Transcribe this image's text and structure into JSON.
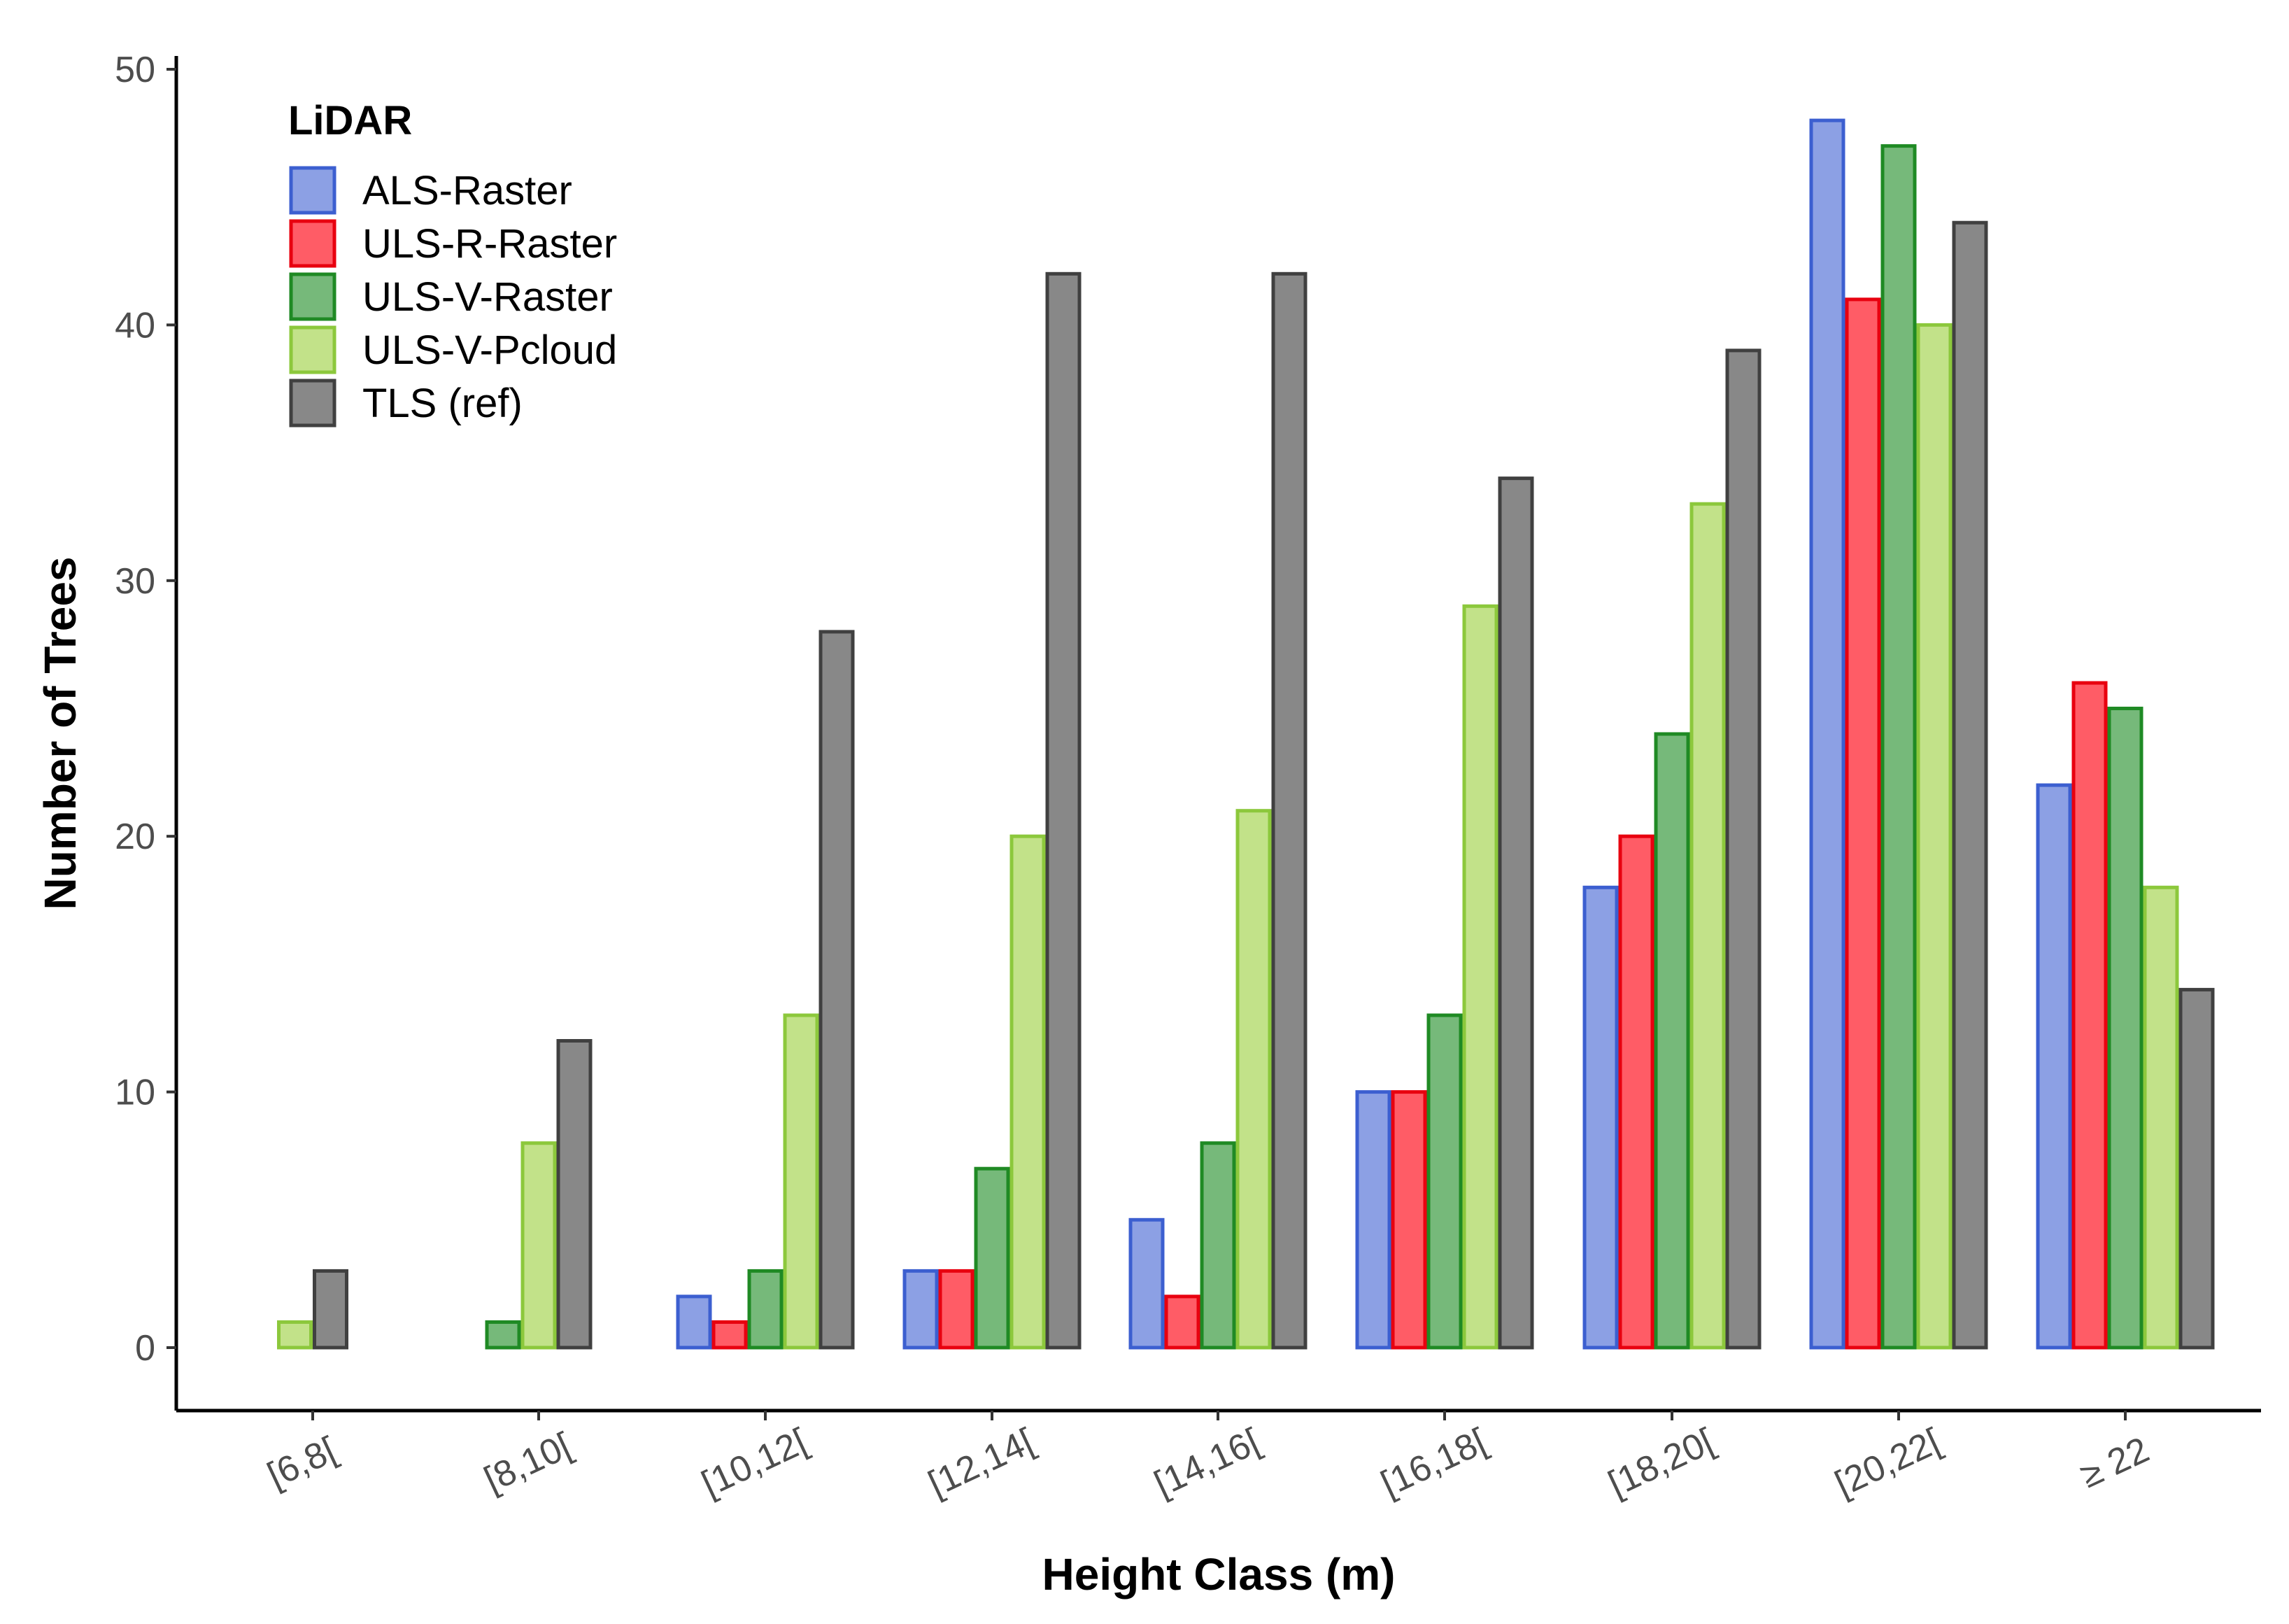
{
  "chart_data": {
    "type": "bar",
    "title": "",
    "xlabel": "Height Class (m)",
    "ylabel": "Number of Trees",
    "ylim": [
      0,
      50
    ],
    "yticks": [
      0,
      10,
      20,
      30,
      40,
      50
    ],
    "ytick_labels": [
      "0",
      "10",
      "20",
      "30",
      "40",
      "50"
    ],
    "grid": false,
    "legend": {
      "title": "LiDAR",
      "position": "top-left"
    },
    "categories": [
      "[6,8[",
      "[8,10[",
      "[10,12[",
      "[12,14[",
      "[14,16[",
      "[16,18[",
      "[18,20[",
      "[20,22[",
      "≥ 22"
    ],
    "series": [
      {
        "name": "ALS-Raster",
        "fill": "#8ca0e4",
        "stroke": "#3c5fd0",
        "values": [
          0,
          0,
          2,
          3,
          5,
          10,
          18,
          48,
          22
        ]
      },
      {
        "name": "ULS-R-Raster",
        "fill": "#ff5c66",
        "stroke": "#e8000f",
        "values": [
          0,
          0,
          1,
          3,
          2,
          10,
          20,
          41,
          26
        ]
      },
      {
        "name": "ULS-V-Raster",
        "fill": "#76b97a",
        "stroke": "#1f8a24",
        "values": [
          0,
          1,
          3,
          7,
          8,
          13,
          24,
          47,
          25
        ]
      },
      {
        "name": "ULS-V-Pcloud",
        "fill": "#c2e289",
        "stroke": "#8cc83c",
        "values": [
          1,
          8,
          13,
          20,
          21,
          29,
          33,
          40,
          18
        ]
      },
      {
        "name": "TLS (ref)",
        "fill": "#888888",
        "stroke": "#404040",
        "values": [
          3,
          12,
          28,
          42,
          42,
          34,
          39,
          44,
          14
        ]
      }
    ]
  }
}
